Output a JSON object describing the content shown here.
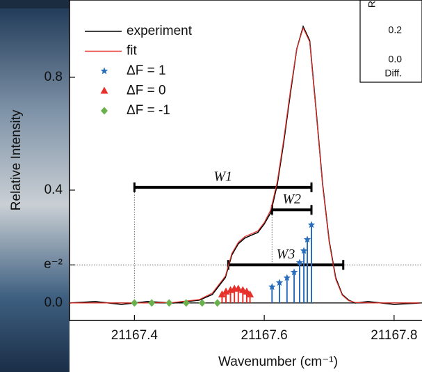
{
  "chart_data": {
    "type": "line",
    "xlabel": "Wavenumber (cm⁻¹)",
    "ylabel": "Relative Intensity",
    "xlim": [
      21167.3,
      21167.843
    ],
    "ylim": [
      -0.062,
      1.074
    ],
    "xticks": [
      21167.4,
      21167.6,
      21167.8
    ],
    "yticks": [
      {
        "value": 0,
        "label": "0.0"
      },
      {
        "value": 0.135,
        "label": "e⁻²"
      },
      {
        "value": 0.4,
        "label": "0.4"
      },
      {
        "value": 0.8,
        "label": "0.8"
      }
    ],
    "series": [
      {
        "name": "experiment",
        "color": "#000000",
        "style": "line",
        "x": [
          21167.3,
          21167.34,
          21167.38,
          21167.42,
          21167.46,
          21167.5,
          21167.52,
          21167.54,
          21167.55,
          21167.56,
          21167.57,
          21167.58,
          21167.59,
          21167.6,
          21167.61,
          21167.62,
          21167.63,
          21167.64,
          21167.65,
          21167.66,
          21167.67,
          21167.68,
          21167.69,
          21167.7,
          21167.71,
          21167.72,
          21167.73,
          21167.74,
          21167.76,
          21167.8,
          21167.84
        ],
        "values": [
          0.0,
          0.005,
          -0.005,
          0.005,
          0.0,
          0.01,
          0.03,
          0.09,
          0.17,
          0.21,
          0.23,
          0.24,
          0.25,
          0.28,
          0.32,
          0.42,
          0.57,
          0.74,
          0.9,
          0.98,
          0.93,
          0.68,
          0.42,
          0.22,
          0.09,
          0.03,
          0.01,
          0.0,
          0.005,
          -0.005,
          0.0
        ]
      },
      {
        "name": "fit",
        "color": "#e8302a",
        "style": "line",
        "x": [
          21167.3,
          21167.34,
          21167.38,
          21167.42,
          21167.46,
          21167.5,
          21167.52,
          21167.54,
          21167.55,
          21167.56,
          21167.57,
          21167.58,
          21167.59,
          21167.6,
          21167.61,
          21167.62,
          21167.63,
          21167.64,
          21167.65,
          21167.66,
          21167.67,
          21167.68,
          21167.69,
          21167.7,
          21167.71,
          21167.72,
          21167.73,
          21167.74,
          21167.76,
          21167.8,
          21167.84
        ],
        "values": [
          0.0,
          0.0,
          0.0,
          0.0,
          0.002,
          0.012,
          0.035,
          0.095,
          0.175,
          0.215,
          0.235,
          0.245,
          0.255,
          0.285,
          0.33,
          0.43,
          0.58,
          0.75,
          0.9,
          0.975,
          0.925,
          0.675,
          0.415,
          0.215,
          0.085,
          0.028,
          0.008,
          0.002,
          0.0,
          0.0,
          0.0
        ]
      },
      {
        "name": "ΔF = 1",
        "color": "#2a6ebb",
        "style": "stick",
        "marker": "star",
        "x": [
          21167.612,
          21167.6235,
          21167.635,
          21167.646,
          21167.6545,
          21167.661,
          21167.6663,
          21167.6727
        ],
        "values": [
          0.057,
          0.072,
          0.089,
          0.109,
          0.143,
          0.185,
          0.225,
          0.277
        ]
      },
      {
        "name": "ΔF = 0",
        "color": "#e8302a",
        "style": "stick",
        "marker": "triangle",
        "x": [
          21167.535,
          21167.541,
          21167.548,
          21167.554,
          21167.56,
          21167.567,
          21167.573,
          21167.578
        ],
        "values": [
          0.03,
          0.04,
          0.045,
          0.05,
          0.05,
          0.045,
          0.04,
          0.03
        ]
      },
      {
        "name": "ΔF = -1",
        "color": "#6ab04c",
        "style": "stick",
        "marker": "diamond",
        "x": [
          21167.4,
          21167.4267,
          21167.4535,
          21167.4797,
          21167.5043,
          21167.5278
        ],
        "values": [
          0,
          0,
          0,
          0,
          0,
          0
        ]
      }
    ],
    "annotations": [
      {
        "label": "W1",
        "x": [
          21167.4,
          21167.6727
        ],
        "y": 0.41
      },
      {
        "label": "W2",
        "x": [
          21167.612,
          21167.6727
        ],
        "y": 0.33
      },
      {
        "label": "W3",
        "x": [
          21167.5445,
          21167.7217
        ],
        "y": 0.135
      }
    ],
    "inset": {
      "ticks": [
        "0.2",
        "0.0"
      ],
      "label": "Diff.",
      "axis_label": "R"
    }
  }
}
